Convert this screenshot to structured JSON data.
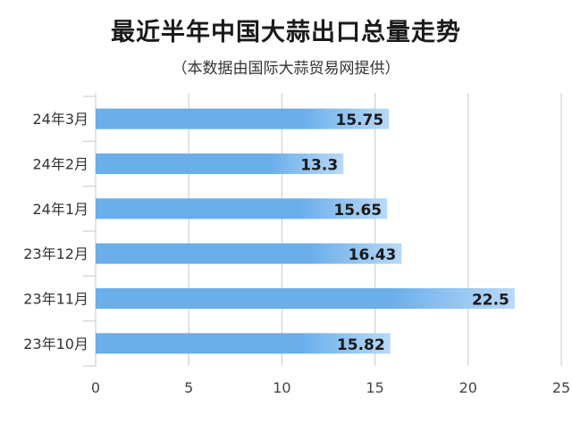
{
  "title": "最近半年中国大蒜出口总量走势",
  "subtitle": "（本数据由国际大蒜贸易网提供）",
  "colors": {
    "bar_light": "#b9d9f7",
    "bar_dark": "#6aaeea",
    "grid": "#d0d0d0",
    "text": "#1a1a1a"
  },
  "chart_data": {
    "type": "bar",
    "orientation": "horizontal",
    "categories": [
      "24年3月",
      "24年2月",
      "24年1月",
      "23年12月",
      "23年11月",
      "23年10月"
    ],
    "values": [
      15.75,
      13.3,
      15.65,
      16.43,
      22.5,
      15.82
    ],
    "value_labels": [
      "15.75",
      "13.3",
      "15.65",
      "16.43",
      "22.5",
      "15.82"
    ],
    "xlim": [
      0,
      25
    ],
    "x_ticks": [
      "0",
      "5",
      "10",
      "15",
      "20",
      "25"
    ],
    "grid": true
  }
}
